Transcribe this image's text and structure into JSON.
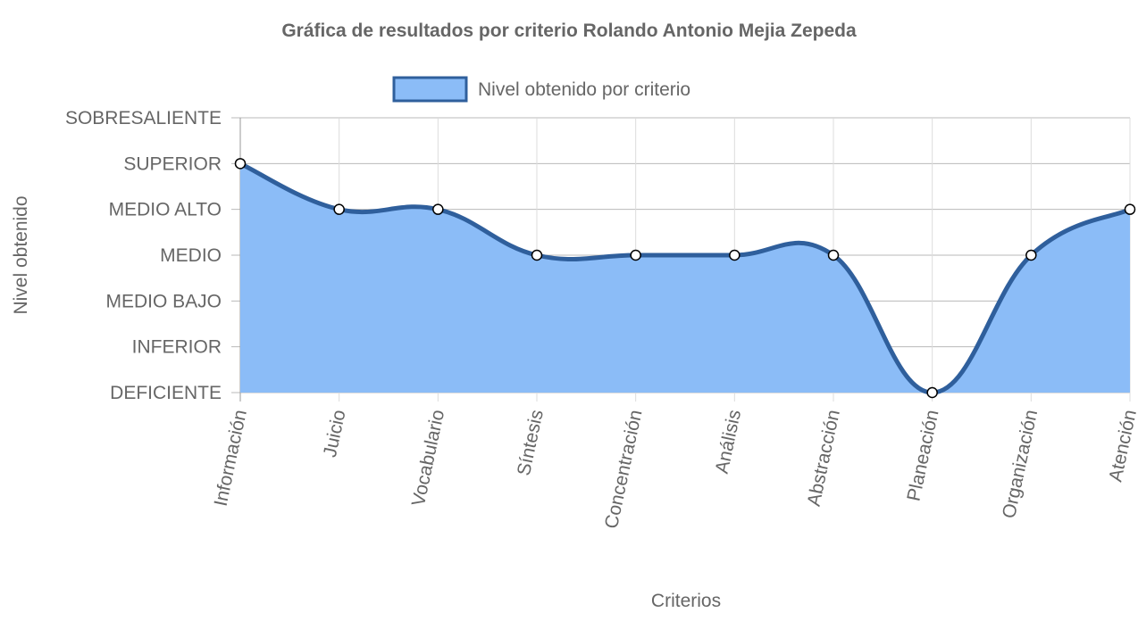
{
  "chart_data": {
    "type": "line",
    "title": "Gráfica de resultados por criterio Rolando Antonio Mejia Zepeda",
    "xlabel": "Criterios",
    "ylabel": "Nivel obtenido",
    "categories": [
      "Información",
      "Juicio",
      "Vocabulario",
      "Síntesis",
      "Concentración",
      "Análisis",
      "Abstracción",
      "Planeación",
      "Organización",
      "Atención"
    ],
    "y_levels": [
      "DEFICIENTE",
      "INFERIOR",
      "MEDIO BAJO",
      "MEDIO",
      "MEDIO ALTO",
      "SUPERIOR",
      "SOBRESALIENTE"
    ],
    "ylim": [
      0,
      6
    ],
    "series": [
      {
        "name": "Nivel obtenido por criterio",
        "values": [
          5,
          4,
          4,
          3,
          3,
          3,
          3,
          0,
          3,
          4
        ],
        "fill": true
      }
    ],
    "legend": "top-center",
    "grid": true,
    "colors": {
      "line": "#2f5f9c",
      "fill": "#8bbcf7",
      "grid": "#b9b9b9",
      "point_fill": "#ffffff",
      "point_stroke": "#000000"
    }
  }
}
